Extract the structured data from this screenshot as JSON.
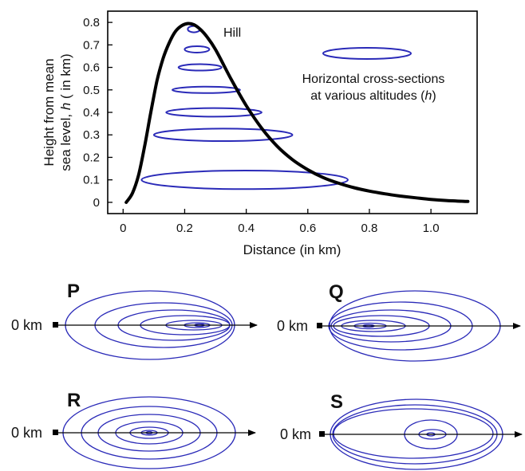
{
  "chart": {
    "type": "line",
    "title": "",
    "xlabel": "Distance (in km)",
    "ylabel_line1": "Height from mean",
    "ylabel_line2_prefix": "sea level, ",
    "ylabel_line2_symbol": "h",
    "ylabel_line2_suffix": " ( in km)",
    "x_ticks": [
      "0",
      "0.2",
      "0.4",
      "0.6",
      "0.8",
      "1.0"
    ],
    "y_ticks": [
      "0",
      "0.1",
      "0.2",
      "0.3",
      "0.4",
      "0.5",
      "0.6",
      "0.7",
      "0.8"
    ],
    "hill_label": "Hill",
    "legend_line1": "Horizontal cross-sections",
    "legend_line2_prefix": "at various altitudes (",
    "legend_line2_symbol": "h",
    "legend_line2_suffix": ")"
  },
  "chart_data": {
    "type": "line",
    "series": [
      {
        "name": "Hill",
        "x": [
          0.01,
          0.03,
          0.05,
          0.07,
          0.09,
          0.11,
          0.13,
          0.15,
          0.17,
          0.19,
          0.21,
          0.23,
          0.25,
          0.27,
          0.3,
          0.35,
          0.4,
          0.45,
          0.5,
          0.55,
          0.6,
          0.65,
          0.7,
          0.75,
          0.8,
          0.85,
          0.9,
          0.95,
          1.0,
          1.05,
          1.12
        ],
        "y": [
          0.0,
          0.04,
          0.12,
          0.25,
          0.4,
          0.54,
          0.64,
          0.71,
          0.76,
          0.785,
          0.795,
          0.79,
          0.77,
          0.74,
          0.68,
          0.55,
          0.43,
          0.33,
          0.25,
          0.19,
          0.145,
          0.11,
          0.085,
          0.065,
          0.05,
          0.038,
          0.028,
          0.02,
          0.013,
          0.008,
          0.004
        ]
      }
    ],
    "cross_sections": [
      {
        "h": 0.1,
        "x_min": 0.06,
        "x_max": 0.73
      },
      {
        "h": 0.3,
        "x_min": 0.1,
        "x_max": 0.55
      },
      {
        "h": 0.4,
        "x_min": 0.14,
        "x_max": 0.45
      },
      {
        "h": 0.5,
        "x_min": 0.16,
        "x_max": 0.38
      },
      {
        "h": 0.6,
        "x_min": 0.18,
        "x_max": 0.32
      },
      {
        "h": 0.68,
        "x_min": 0.2,
        "x_max": 0.28
      },
      {
        "h": 0.77,
        "x_min": 0.21,
        "x_max": 0.25
      }
    ],
    "xlim": [
      -0.05,
      1.15
    ],
    "ylim": [
      -0.05,
      0.85
    ],
    "grid": false
  },
  "options": [
    {
      "letter": "P",
      "origin": "0 km"
    },
    {
      "letter": "Q",
      "origin": "0 km"
    },
    {
      "letter": "R",
      "origin": "0 km"
    },
    {
      "letter": "S",
      "origin": "0 km"
    }
  ],
  "colors": {
    "contour": "#2a2ab8",
    "curve": "#000000"
  }
}
